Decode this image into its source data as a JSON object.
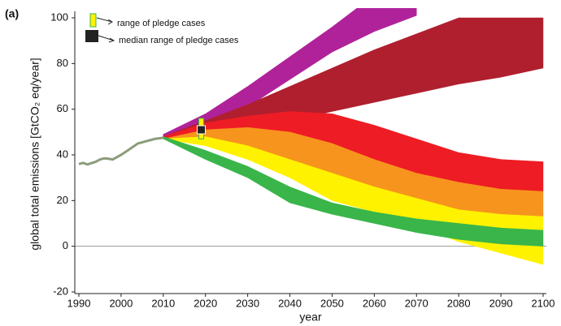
{
  "chart_data": {
    "type": "band",
    "panel_label": "(a)",
    "y_label": "global total emissions [GtCO₂ eq/year]",
    "x_label": "year",
    "xlim": [
      1990,
      2100
    ],
    "xticks": [
      1990,
      2000,
      2010,
      2020,
      2030,
      2040,
      2050,
      2060,
      2070,
      2080,
      2090,
      2100
    ],
    "ylim": [
      -20,
      100
    ],
    "yticks": [
      -20,
      0,
      20,
      40,
      60,
      80,
      100
    ],
    "history": {
      "color": "#8c9c7c",
      "x": [
        1990,
        1991,
        1992,
        1994,
        1995,
        1996,
        1997,
        1998,
        2000,
        2002,
        2004,
        2006,
        2008,
        2010
      ],
      "values": [
        36,
        36.5,
        35.8,
        37,
        38,
        38.5,
        38.3,
        38,
        40,
        42.5,
        45,
        46,
        47,
        47.5
      ]
    },
    "x": [
      2010,
      2020,
      2030,
      2040,
      2050,
      2060,
      2070,
      2080,
      2090,
      2100
    ],
    "series": [
      {
        "color": "#b0229a",
        "upper": [
          49,
          58,
          70,
          83,
          96,
          110,
          120,
          null,
          null,
          null
        ],
        "lower": [
          47,
          52,
          61,
          73,
          85,
          94,
          101,
          null,
          null,
          null
        ]
      },
      {
        "color": "#b01f2e",
        "upper": [
          48,
          55,
          62,
          70,
          78,
          86,
          93,
          100,
          100,
          100
        ],
        "lower": [
          47,
          50,
          52,
          55,
          59,
          63,
          67,
          71,
          74,
          78
        ]
      },
      {
        "color": "#ee1c24",
        "upper": [
          48,
          54,
          57,
          59,
          58,
          53,
          47,
          41,
          38,
          37
        ],
        "lower": [
          47,
          50,
          51,
          50,
          44,
          37,
          31,
          27,
          25,
          24
        ]
      },
      {
        "color": "#f7941d",
        "upper": [
          47,
          51,
          52,
          50,
          45,
          38,
          32,
          28,
          25,
          24
        ],
        "lower": [
          47,
          46,
          40,
          33,
          27,
          22,
          18,
          15,
          14,
          13
        ]
      },
      {
        "color": "#fff200",
        "upper": [
          47,
          48,
          44,
          38,
          32,
          26,
          21,
          16,
          14,
          13
        ],
        "lower": [
          47,
          44,
          38,
          30,
          20,
          15,
          9,
          2,
          -3,
          -8
        ]
      },
      {
        "color": "#39b54a",
        "upper": [
          48,
          42,
          35,
          26,
          19,
          15,
          12,
          10,
          8,
          7
        ],
        "lower": [
          47,
          38,
          30,
          19,
          14,
          10,
          6,
          3,
          1,
          0
        ]
      }
    ],
    "pledge": {
      "x": 2019,
      "range": [
        47,
        56
      ],
      "median": 51,
      "range_color": "#fff200",
      "median_color": "#222222"
    },
    "legend": {
      "range_label": "range of pledge cases",
      "median_label": "median range of pledge cases"
    }
  }
}
